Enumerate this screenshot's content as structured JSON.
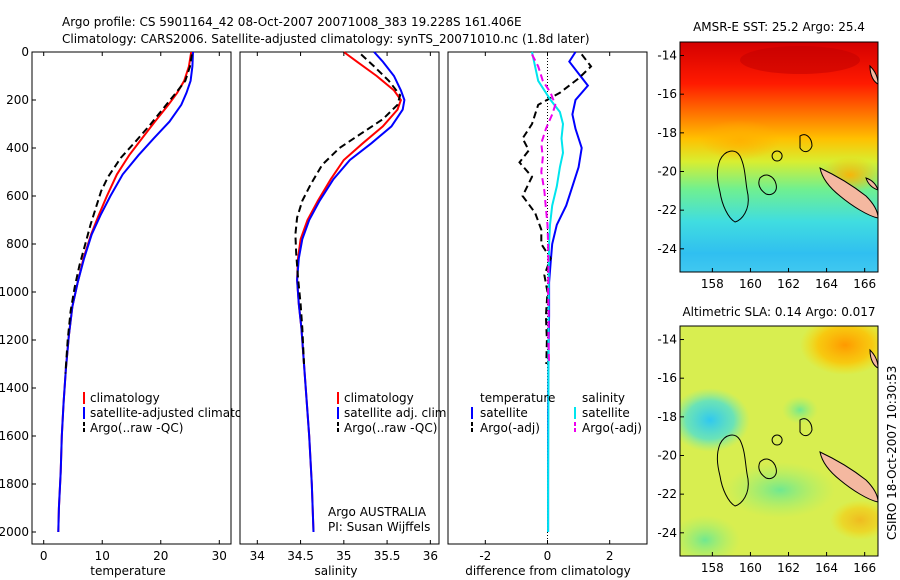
{
  "header": {
    "line1": "Argo profile: CS 5901164_42 08-Oct-2007 20071008_383 19.228S 161.406E",
    "line2": "Climatology: CARS2006. Satellite-adjusted climatology: synTS_20071010.nc (1.8d later)"
  },
  "credit": "CSIRO 18-Oct-2007 10:30:53",
  "colors": {
    "climatology": "#ff0000",
    "satellite": "#0000ff",
    "argo": "#000000",
    "sal_satellite": "#00e5ee",
    "sal_argo": "#ee00ee"
  },
  "chart_data": [
    {
      "type": "line",
      "panel": "temperature",
      "xlabel": "temperature",
      "ylabel": "",
      "xlim": [
        -2,
        32
      ],
      "ylim": [
        2050,
        0
      ],
      "xticks": [
        0,
        10,
        20,
        30
      ],
      "yticks": [
        0,
        200,
        400,
        600,
        800,
        1000,
        1200,
        1400,
        1600,
        1800,
        2000
      ],
      "legend": [
        "climatology",
        "satellite-adjusted climatology",
        "Argo(..raw -QC)"
      ],
      "legend_position": "lower-right",
      "series": [
        {
          "name": "climatology",
          "color": "#ff0000",
          "dash": "solid",
          "points": [
            [
              25.2,
              0
            ],
            [
              24.8,
              60
            ],
            [
              24.0,
              120
            ],
            [
              22.8,
              170
            ],
            [
              21.3,
              220
            ],
            [
              19.0,
              290
            ],
            [
              16.8,
              360
            ],
            [
              14.6,
              430
            ],
            [
              12.5,
              510
            ],
            [
              10.8,
              600
            ],
            [
              9.4,
              680
            ],
            [
              8.1,
              760
            ],
            [
              6.8,
              860
            ],
            [
              5.8,
              960
            ],
            [
              4.9,
              1060
            ],
            [
              4.3,
              1180
            ],
            [
              3.8,
              1320
            ],
            [
              3.4,
              1460
            ],
            [
              3.1,
              1600
            ],
            [
              2.9,
              1750
            ],
            [
              2.6,
              1900
            ],
            [
              2.5,
              2000
            ]
          ]
        },
        {
          "name": "satellite-adjusted climatology",
          "color": "#0000ff",
          "dash": "solid",
          "points": [
            [
              25.5,
              0
            ],
            [
              25.4,
              60
            ],
            [
              25.1,
              120
            ],
            [
              24.4,
              170
            ],
            [
              23.5,
              220
            ],
            [
              21.5,
              290
            ],
            [
              18.8,
              360
            ],
            [
              16.2,
              430
            ],
            [
              13.5,
              510
            ],
            [
              11.4,
              600
            ],
            [
              9.7,
              680
            ],
            [
              8.2,
              760
            ],
            [
              6.9,
              860
            ],
            [
              5.8,
              960
            ],
            [
              4.9,
              1060
            ],
            [
              4.3,
              1180
            ],
            [
              3.8,
              1320
            ],
            [
              3.4,
              1460
            ],
            [
              3.1,
              1600
            ],
            [
              2.9,
              1750
            ],
            [
              2.6,
              1900
            ],
            [
              2.5,
              2000
            ]
          ]
        },
        {
          "name": "Argo(..raw -QC)",
          "color": "#000000",
          "dash": "dash",
          "points": [
            [
              25.3,
              10
            ],
            [
              25.0,
              60
            ],
            [
              24.2,
              120
            ],
            [
              22.6,
              170
            ],
            [
              20.6,
              230
            ],
            [
              18.3,
              300
            ],
            [
              15.8,
              370
            ],
            [
              13.2,
              440
            ],
            [
              11.0,
              520
            ],
            [
              9.8,
              580
            ],
            [
              8.9,
              650
            ],
            [
              8.0,
              720
            ],
            [
              7.1,
              800
            ],
            [
              6.1,
              890
            ],
            [
              5.3,
              980
            ],
            [
              4.6,
              1080
            ],
            [
              4.1,
              1200
            ],
            [
              3.7,
              1340
            ]
          ]
        }
      ]
    },
    {
      "type": "line",
      "panel": "salinity",
      "xlabel": "salinity",
      "ylabel": "",
      "xlim": [
        33.8,
        36.1
      ],
      "ylim": [
        2050,
        0
      ],
      "xticks": [
        34,
        34.5,
        35,
        35.5,
        36
      ],
      "legend": [
        "climatology",
        "satellite adj. clim.",
        "Argo(..raw -QC)"
      ],
      "legend_position": "lower-right",
      "annotation": [
        "Argo AUSTRALIA",
        "PI: Susan Wijffels"
      ],
      "series": [
        {
          "name": "climatology",
          "color": "#ff0000",
          "dash": "solid",
          "points": [
            [
              35.0,
              0
            ],
            [
              35.15,
              40
            ],
            [
              35.38,
              100
            ],
            [
              35.58,
              160
            ],
            [
              35.66,
              200
            ],
            [
              35.62,
              240
            ],
            [
              35.45,
              310
            ],
            [
              35.22,
              380
            ],
            [
              35.0,
              450
            ],
            [
              34.85,
              530
            ],
            [
              34.7,
              620
            ],
            [
              34.58,
              700
            ],
            [
              34.5,
              780
            ],
            [
              34.47,
              860
            ],
            [
              34.46,
              950
            ],
            [
              34.48,
              1050
            ],
            [
              34.51,
              1150
            ],
            [
              34.54,
              1300
            ],
            [
              34.57,
              1450
            ],
            [
              34.6,
              1600
            ],
            [
              34.63,
              1800
            ],
            [
              34.65,
              2000
            ]
          ]
        },
        {
          "name": "satellite adj. clim.",
          "color": "#0000ff",
          "dash": "solid",
          "points": [
            [
              35.35,
              0
            ],
            [
              35.45,
              40
            ],
            [
              35.58,
              100
            ],
            [
              35.66,
              160
            ],
            [
              35.7,
              200
            ],
            [
              35.68,
              240
            ],
            [
              35.55,
              310
            ],
            [
              35.32,
              380
            ],
            [
              35.07,
              450
            ],
            [
              34.88,
              530
            ],
            [
              34.72,
              620
            ],
            [
              34.6,
              700
            ],
            [
              34.52,
              780
            ],
            [
              34.48,
              860
            ],
            [
              34.46,
              950
            ],
            [
              34.48,
              1050
            ],
            [
              34.51,
              1150
            ],
            [
              34.54,
              1300
            ],
            [
              34.57,
              1450
            ],
            [
              34.6,
              1600
            ],
            [
              34.63,
              1800
            ],
            [
              34.65,
              2000
            ]
          ]
        },
        {
          "name": "Argo(..raw -QC)",
          "color": "#000000",
          "dash": "dash",
          "points": [
            [
              35.2,
              10
            ],
            [
              35.35,
              60
            ],
            [
              35.52,
              120
            ],
            [
              35.65,
              180
            ],
            [
              35.62,
              220
            ],
            [
              35.45,
              280
            ],
            [
              35.2,
              340
            ],
            [
              34.95,
              400
            ],
            [
              34.75,
              470
            ],
            [
              34.62,
              550
            ],
            [
              34.52,
              620
            ],
            [
              34.46,
              690
            ],
            [
              34.44,
              760
            ],
            [
              34.45,
              840
            ],
            [
              34.47,
              940
            ],
            [
              34.5,
              1050
            ],
            [
              34.52,
              1150
            ],
            [
              34.54,
              1300
            ]
          ]
        }
      ]
    },
    {
      "type": "line",
      "panel": "difference",
      "xlabel": "difference from climatology",
      "ylabel": "",
      "xlim": [
        -3.2,
        3.2
      ],
      "ylim": [
        2050,
        0
      ],
      "xticks": [
        -2,
        0,
        2
      ],
      "legend_groups": [
        {
          "title": "temperature",
          "items": [
            "satellite",
            "Argo(-adj)"
          ]
        },
        {
          "title": "salinity",
          "items": [
            "satellite",
            "Argo(-adj)"
          ]
        }
      ],
      "legend_position": "lower-center",
      "series": [
        {
          "name": "temperature satellite",
          "color": "#0000ff",
          "dash": "solid",
          "points": [
            [
              0.9,
              0
            ],
            [
              0.7,
              40
            ],
            [
              1.0,
              90
            ],
            [
              1.3,
              140
            ],
            [
              0.9,
              200
            ],
            [
              0.8,
              260
            ],
            [
              0.9,
              320
            ],
            [
              1.1,
              400
            ],
            [
              1.0,
              480
            ],
            [
              0.8,
              560
            ],
            [
              0.6,
              640
            ],
            [
              0.3,
              720
            ],
            [
              0.15,
              800
            ],
            [
              0.1,
              880
            ],
            [
              0.05,
              960
            ],
            [
              0.05,
              1100
            ],
            [
              0.03,
              1300
            ],
            [
              0.02,
              1500
            ],
            [
              0.02,
              1700
            ],
            [
              0.02,
              2000
            ]
          ]
        },
        {
          "name": "temperature Argo(-adj)",
          "color": "#000000",
          "dash": "dash",
          "points": [
            [
              1.1,
              10
            ],
            [
              1.4,
              60
            ],
            [
              1.0,
              110
            ],
            [
              0.4,
              170
            ],
            [
              -0.3,
              220
            ],
            [
              -0.5,
              300
            ],
            [
              -0.8,
              360
            ],
            [
              -0.6,
              410
            ],
            [
              -0.9,
              460
            ],
            [
              -0.5,
              520
            ],
            [
              -0.8,
              600
            ],
            [
              -0.4,
              670
            ],
            [
              -0.2,
              740
            ],
            [
              -0.2,
              800
            ],
            [
              0.1,
              860
            ],
            [
              -0.1,
              930
            ],
            [
              0.0,
              1000
            ],
            [
              -0.05,
              1100
            ],
            [
              -0.02,
              1200
            ],
            [
              -0.04,
              1300
            ]
          ]
        },
        {
          "name": "salinity satellite",
          "color": "#00e5ee",
          "dash": "solid",
          "points": [
            [
              -0.5,
              0
            ],
            [
              -0.4,
              60
            ],
            [
              -0.3,
              120
            ],
            [
              0.1,
              200
            ],
            [
              0.4,
              250
            ],
            [
              0.5,
              300
            ],
            [
              0.45,
              360
            ],
            [
              0.5,
              420
            ],
            [
              0.4,
              480
            ],
            [
              0.3,
              560
            ],
            [
              0.15,
              640
            ],
            [
              0.08,
              720
            ],
            [
              0.05,
              800
            ],
            [
              0.04,
              900
            ],
            [
              0.04,
              1000
            ],
            [
              0.03,
              1200
            ],
            [
              0.03,
              1500
            ],
            [
              0.02,
              1800
            ],
            [
              0.02,
              2000
            ]
          ]
        },
        {
          "name": "salinity Argo(-adj)",
          "color": "#ee00ee",
          "dash": "dash",
          "points": [
            [
              -0.5,
              10
            ],
            [
              -0.3,
              60
            ],
            [
              -0.15,
              120
            ],
            [
              0.1,
              170
            ],
            [
              0.25,
              220
            ],
            [
              0.15,
              260
            ],
            [
              -0.05,
              320
            ],
            [
              -0.2,
              380
            ],
            [
              -0.15,
              440
            ],
            [
              -0.2,
              500
            ],
            [
              -0.1,
              580
            ],
            [
              -0.05,
              650
            ],
            [
              0.0,
              720
            ],
            [
              0.02,
              800
            ],
            [
              0.03,
              900
            ],
            [
              0.02,
              1000
            ],
            [
              0.04,
              1100
            ],
            [
              0.03,
              1200
            ],
            [
              0.05,
              1300
            ]
          ]
        }
      ]
    },
    {
      "type": "heatmap",
      "panel": "sst-map",
      "title": "AMSR-E SST: 25.2 Argo: 25.4",
      "xlim": [
        156.3,
        166.7
      ],
      "ylim": [
        -25.2,
        -13.3
      ],
      "xticks": [
        158,
        160,
        162,
        164,
        166
      ],
      "yticks": [
        -14,
        -16,
        -18,
        -20,
        -22,
        -24
      ],
      "marker": {
        "lon": 161.4,
        "lat": -19.2
      }
    },
    {
      "type": "heatmap",
      "panel": "sla-map",
      "title": "Altimetric SLA: 0.14 Argo: 0.017",
      "xlim": [
        156.3,
        166.7
      ],
      "ylim": [
        -25.2,
        -13.3
      ],
      "xticks": [
        158,
        160,
        162,
        164,
        166
      ],
      "yticks": [
        -14,
        -16,
        -18,
        -20,
        -22,
        -24
      ],
      "marker": {
        "lon": 161.4,
        "lat": -19.2
      }
    }
  ]
}
